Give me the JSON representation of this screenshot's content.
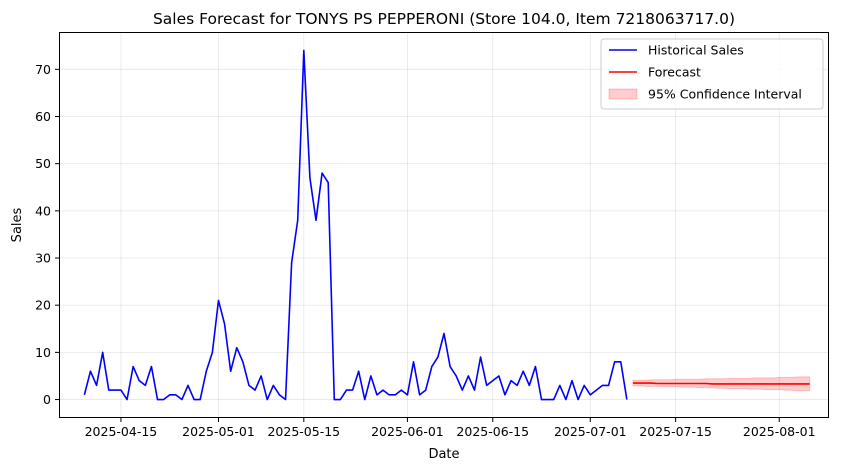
{
  "chart_data": {
    "type": "line",
    "title": "Sales Forecast for TONYS PS PEPPERONI (Store 104.0, Item 7218063717.0)",
    "xlabel": "Date",
    "ylabel": "Sales",
    "x_ticks": [
      "2025-04-15",
      "2025-05-01",
      "2025-05-15",
      "2025-06-01",
      "2025-06-15",
      "2025-07-01",
      "2025-07-15",
      "2025-08-01"
    ],
    "y_ticks": [
      0,
      10,
      20,
      30,
      40,
      50,
      60,
      70
    ],
    "xlim": [
      "2025-04-05",
      "2025-08-09"
    ],
    "ylim": [
      -3.7,
      77.7
    ],
    "grid": true,
    "legend_position": "top-right",
    "series": [
      {
        "name": "Historical Sales",
        "type": "line",
        "color": "#0000ff",
        "start_date": "2025-04-09",
        "values": [
          1,
          6,
          3,
          10,
          2,
          2,
          2,
          0,
          7,
          4,
          3,
          7,
          0,
          0,
          1,
          1,
          0,
          3,
          0,
          0,
          6,
          10,
          21,
          16,
          6,
          11,
          8,
          3,
          2,
          5,
          0,
          3,
          1,
          0,
          29,
          38,
          74,
          47,
          38,
          48,
          46,
          0,
          0,
          2,
          2,
          6,
          0,
          5,
          1,
          2,
          1,
          1,
          2,
          1,
          8,
          1,
          2,
          7,
          9,
          14,
          7,
          5,
          2,
          5,
          2,
          9,
          3,
          4,
          5,
          1,
          4,
          3,
          6,
          3,
          7,
          0,
          0,
          0,
          3,
          0,
          4,
          0,
          3,
          1,
          2,
          3,
          3,
          8,
          8,
          0
        ]
      },
      {
        "name": "Forecast",
        "type": "line",
        "color": "#ff0000",
        "start_date": "2025-07-08",
        "values": [
          3.5,
          3.5,
          3.5,
          3.5,
          3.4,
          3.4,
          3.4,
          3.4,
          3.4,
          3.4,
          3.4,
          3.4,
          3.4,
          3.3,
          3.3,
          3.3,
          3.3,
          3.3,
          3.3,
          3.3,
          3.3,
          3.3,
          3.3,
          3.3,
          3.3,
          3.3,
          3.3,
          3.3,
          3.3,
          3.3
        ]
      },
      {
        "name": "95% Confidence Interval",
        "type": "band",
        "color": "#ff0000",
        "start_date": "2025-07-08",
        "lower": [
          2.9,
          2.9,
          2.8,
          2.8,
          2.8,
          2.7,
          2.7,
          2.7,
          2.6,
          2.6,
          2.6,
          2.5,
          2.5,
          2.5,
          2.4,
          2.4,
          2.3,
          2.3,
          2.3,
          2.2,
          2.2,
          2.2,
          2.1,
          2.1,
          2.1,
          2.0,
          2.0,
          1.9,
          1.9,
          1.9
        ],
        "upper": [
          4.1,
          4.1,
          4.1,
          4.2,
          4.2,
          4.2,
          4.2,
          4.3,
          4.3,
          4.3,
          4.3,
          4.3,
          4.4,
          4.4,
          4.4,
          4.4,
          4.5,
          4.5,
          4.5,
          4.5,
          4.6,
          4.6,
          4.6,
          4.6,
          4.7,
          4.7,
          4.7,
          4.8,
          4.8,
          4.8
        ]
      }
    ]
  }
}
